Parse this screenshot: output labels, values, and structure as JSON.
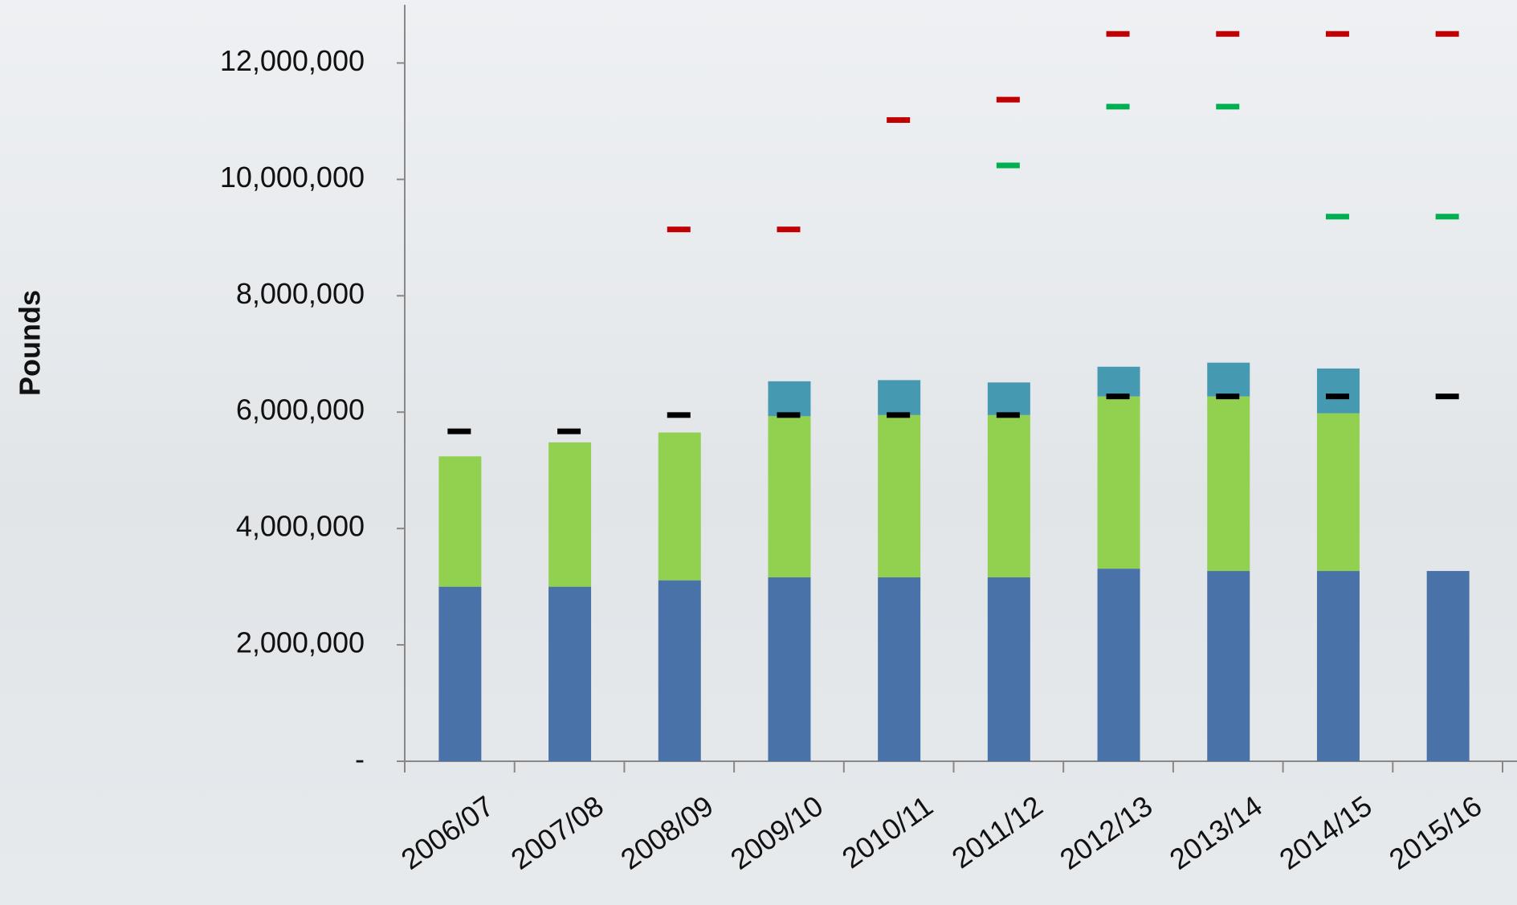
{
  "chart_data": {
    "type": "stacked-bar-with-markers",
    "y_label": "Pounds",
    "categories": [
      "2006/07",
      "2007/08",
      "2008/09",
      "2009/10",
      "2010/11",
      "2011/12",
      "2012/13",
      "2013/14",
      "2014/15",
      "2015/16"
    ],
    "series": [
      {
        "color": "#4872a8",
        "values": [
          3000000,
          3000000,
          3110000,
          3160000,
          3160000,
          3160000,
          3310000,
          3270000,
          3270000,
          3270000
        ]
      },
      {
        "color": "#92d050",
        "values": [
          2240000,
          2480000,
          2540000,
          2770000,
          2790000,
          2790000,
          2960000,
          3000000,
          2710000,
          null
        ]
      },
      {
        "color": "#4599b0",
        "values": [
          null,
          null,
          null,
          600000,
          600000,
          560000,
          510000,
          580000,
          770000,
          null
        ]
      }
    ],
    "markers": [
      {
        "color": "#000000",
        "values": [
          5670000,
          5670000,
          5950000,
          5950000,
          5950000,
          5950000,
          6270000,
          6270000,
          6270000,
          6270000
        ]
      },
      {
        "color": "#c00000",
        "values": [
          null,
          null,
          9140000,
          9140000,
          11020000,
          11370000,
          12500000,
          12500000,
          12500000,
          12500000
        ]
      },
      {
        "color": "#00b050",
        "values": [
          null,
          null,
          null,
          null,
          null,
          10240000,
          11250000,
          11250000,
          9360000,
          9360000
        ]
      }
    ],
    "ylim": [
      0,
      13000000
    ],
    "yticks": [
      {
        "value": 0,
        "label": "-"
      },
      {
        "value": 2000000,
        "label": "2,000,000"
      },
      {
        "value": 4000000,
        "label": "4,000,000"
      },
      {
        "value": 6000000,
        "label": "6,000,000"
      },
      {
        "value": 8000000,
        "label": "8,000,000"
      },
      {
        "value": 10000000,
        "label": "10,000,000"
      },
      {
        "value": 12000000,
        "label": "12,000,000"
      }
    ]
  }
}
